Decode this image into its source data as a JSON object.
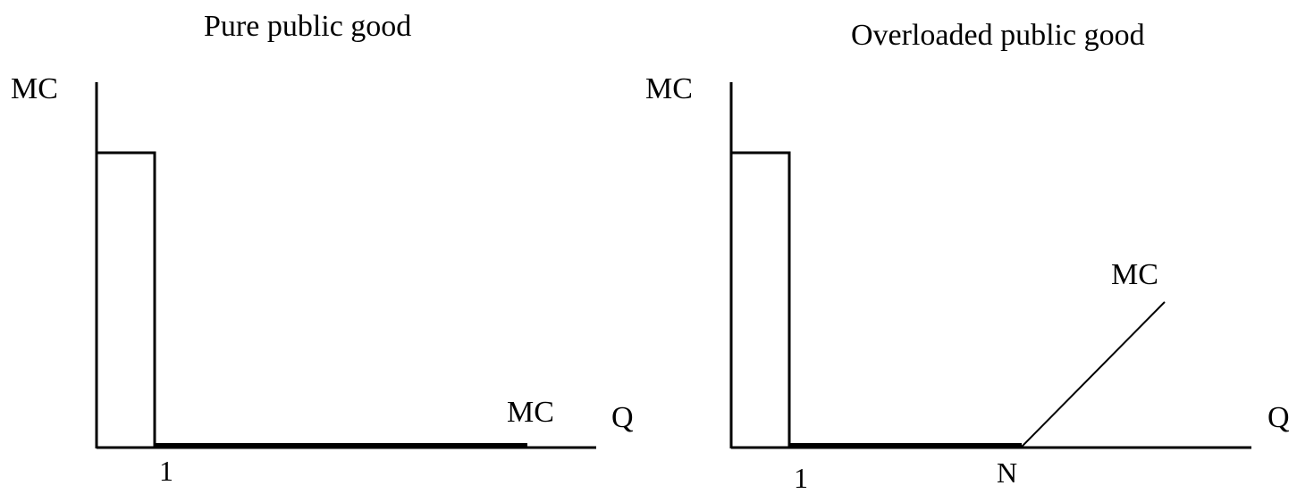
{
  "left_panel": {
    "title": "Pure public good",
    "y_axis_label": "MC",
    "x_axis_label": "Q",
    "curve_label": "MC",
    "tick_1": "1"
  },
  "right_panel": {
    "title": "Overloaded public good",
    "y_axis_label": "MC",
    "x_axis_label": "Q",
    "curve_label": "MC",
    "tick_1": "1",
    "tick_n": "N"
  }
}
